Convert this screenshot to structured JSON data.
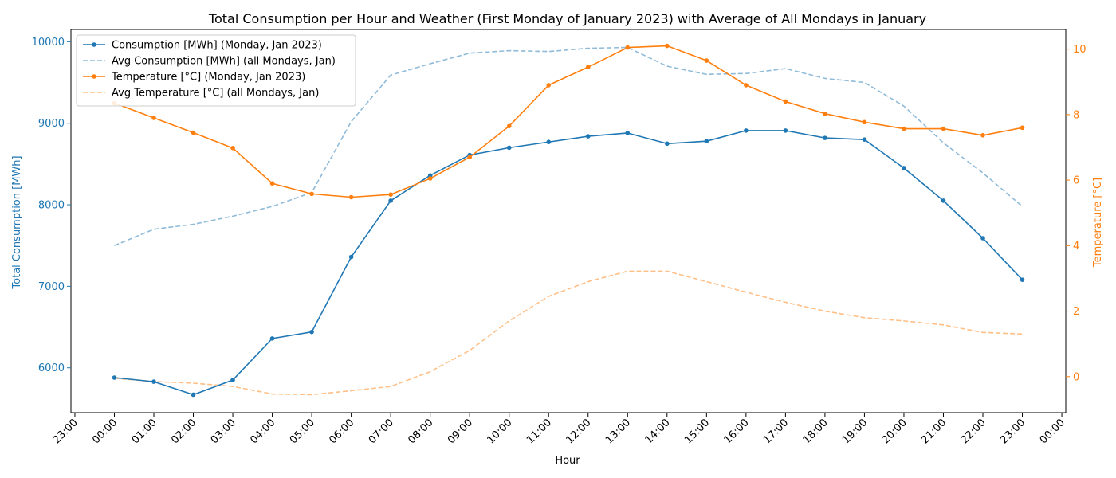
{
  "chart_data": {
    "type": "line",
    "title": "Total Consumption per Hour and Weather (First Monday of January 2023) with Average of All Mondays in January",
    "xlabel": "Hour",
    "ylabel_left": "Total Consumption [MWh]",
    "ylabel_right": "Temperature [°C]",
    "x_tick_labels": [
      "23:00",
      "00:00",
      "01:00",
      "02:00",
      "03:00",
      "04:00",
      "05:00",
      "06:00",
      "07:00",
      "08:00",
      "09:00",
      "10:00",
      "11:00",
      "12:00",
      "13:00",
      "14:00",
      "15:00",
      "16:00",
      "17:00",
      "18:00",
      "19:00",
      "20:00",
      "21:00",
      "22:00",
      "23:00",
      "00:00"
    ],
    "x_hours": [
      0,
      1,
      2,
      3,
      4,
      5,
      6,
      7,
      8,
      9,
      10,
      11,
      12,
      13,
      14,
      15,
      16,
      17,
      18,
      19,
      20,
      21,
      22,
      23
    ],
    "xlim": [
      -1.1,
      24.1
    ],
    "ylim_left": [
      5450,
      10150
    ],
    "ylim_right": [
      -1.1,
      10.6
    ],
    "y_ticks_left": [
      6000,
      7000,
      8000,
      9000,
      10000
    ],
    "y_ticks_right": [
      0,
      2,
      4,
      6,
      8,
      10
    ],
    "grid": false,
    "legend_position": "top-left",
    "colors": {
      "consumption": "#1f77b4",
      "temperature": "#ff7f0e",
      "avg_consumption": "#8fbbd9",
      "avg_temperature": "#ffbf86"
    },
    "series": [
      {
        "name": "Consumption [MWh] (Monday, Jan 2023)",
        "axis": "left",
        "style": "solid-marker",
        "color": "#1f77b4",
        "values": [
          5880,
          5830,
          5670,
          5850,
          6360,
          6440,
          7360,
          8050,
          8360,
          8610,
          8700,
          8770,
          8840,
          8880,
          8750,
          8780,
          8910,
          8910,
          8820,
          8800,
          8450,
          8050,
          7590,
          7080
        ]
      },
      {
        "name": "Avg Consumption [MWh] (all Mondays, Jan)",
        "axis": "left",
        "style": "dashed",
        "color": "#8fbbd9",
        "values": [
          7500,
          7700,
          7760,
          7860,
          7980,
          8150,
          9020,
          9590,
          9730,
          9860,
          9890,
          9880,
          9920,
          9930,
          9700,
          9600,
          9610,
          9670,
          9550,
          9500,
          9210,
          8760,
          8390,
          7980
        ]
      },
      {
        "name": "Temperature [°C] (Monday, Jan 2023)",
        "axis": "right",
        "style": "solid-marker",
        "color": "#ff7f0e",
        "values": [
          8.35,
          7.9,
          7.45,
          6.98,
          5.9,
          5.58,
          5.48,
          5.56,
          6.05,
          6.7,
          7.65,
          8.9,
          9.45,
          10.05,
          10.1,
          9.65,
          8.9,
          8.4,
          8.03,
          7.77,
          7.57,
          7.57,
          7.37,
          7.6
        ]
      },
      {
        "name": "Avg Temperature [°C] (all Mondays, Jan)",
        "axis": "right",
        "style": "dashed",
        "color": "#ffbf86",
        "values": [
          -0.05,
          -0.15,
          -0.2,
          -0.3,
          -0.53,
          -0.55,
          -0.43,
          -0.3,
          0.15,
          0.8,
          1.7,
          2.45,
          2.9,
          3.22,
          3.22,
          2.9,
          2.58,
          2.27,
          2.0,
          1.8,
          1.7,
          1.58,
          1.35,
          1.3
        ]
      }
    ]
  }
}
